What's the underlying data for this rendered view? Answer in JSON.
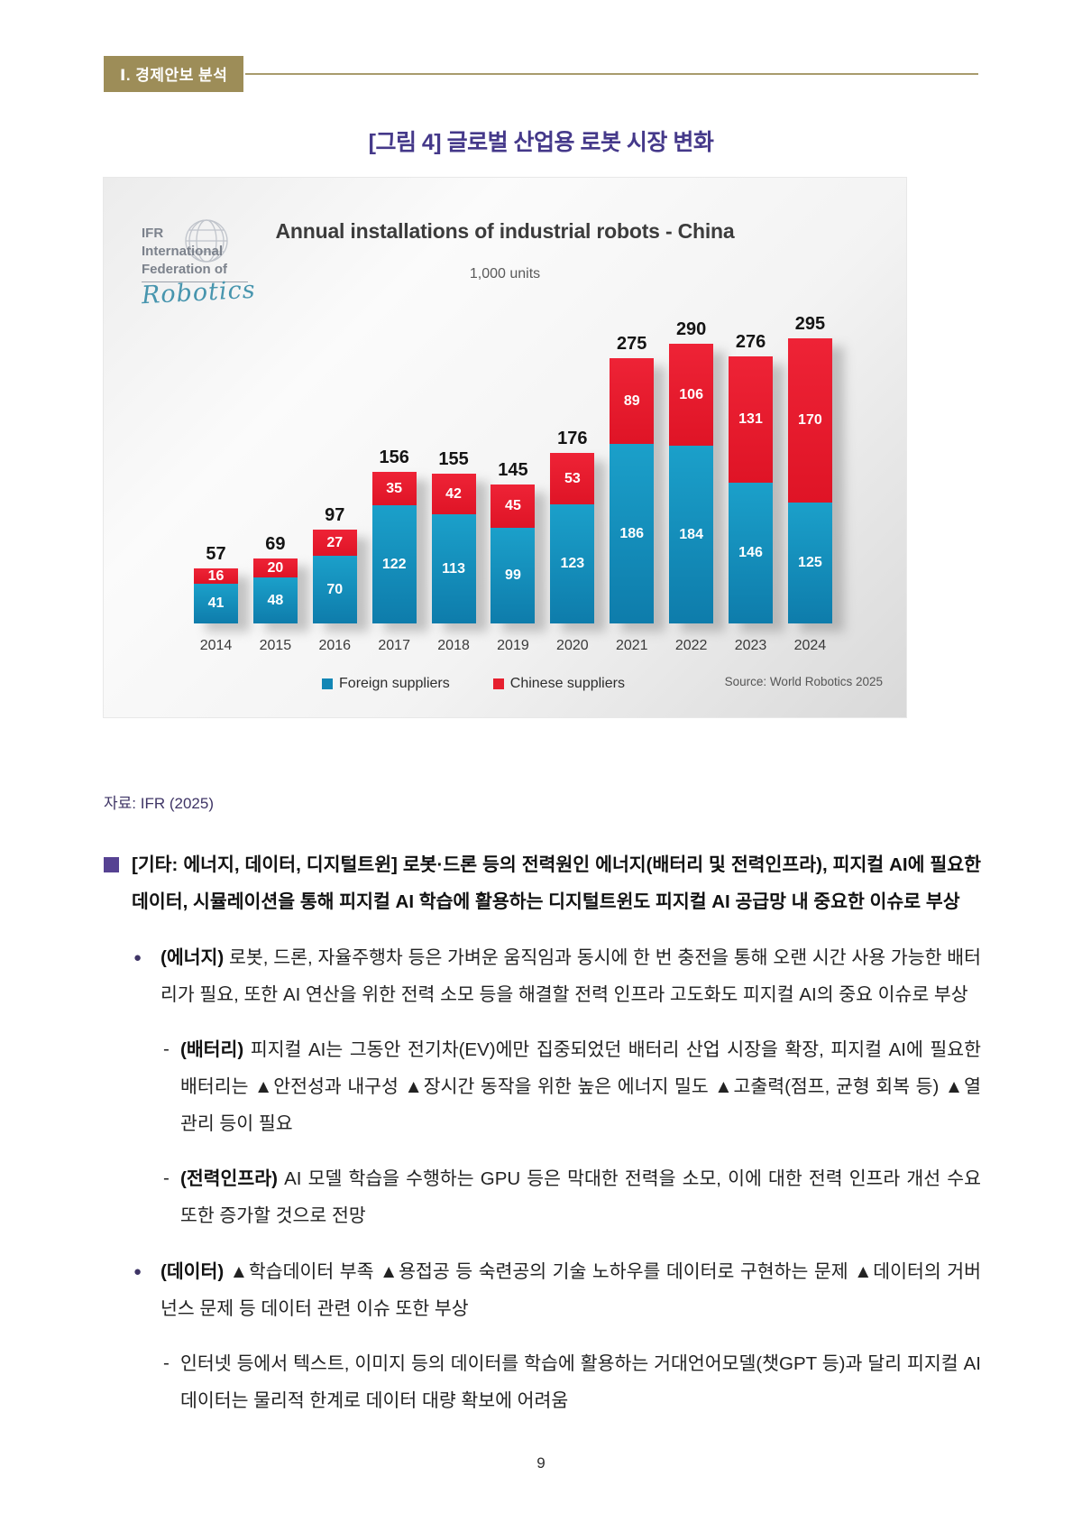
{
  "page": {
    "header": {
      "badge": "Ⅰ. 경제안보 분석"
    },
    "figure_title": "[그림 4] 글로벌 산업용 로봇 시장 변화",
    "source_caption": "자료: IFR (2025)",
    "page_number": "9"
  },
  "chart": {
    "logo": {
      "line1": "IFR",
      "line2": "International",
      "line3": "Federation of",
      "script": "Robotics"
    },
    "title": "Annual installations of industrial robots - China",
    "subtitle": "1,000 units",
    "source": "Source: World Robotics 2025"
  },
  "chart_data": {
    "type": "bar",
    "stacked": true,
    "title": "Annual installations of industrial robots - China",
    "subtitle": "1,000 units",
    "categories": [
      "2014",
      "2015",
      "2016",
      "2017",
      "2018",
      "2019",
      "2020",
      "2021",
      "2022",
      "2023",
      "2024"
    ],
    "series": [
      {
        "name": "Foreign suppliers",
        "color": "#1286b5",
        "values": [
          41,
          48,
          70,
          122,
          113,
          99,
          123,
          186,
          184,
          146,
          125
        ]
      },
      {
        "name": "Chinese suppliers",
        "color": "#e61f2e",
        "values": [
          16,
          20,
          27,
          35,
          42,
          45,
          53,
          89,
          106,
          131,
          170
        ]
      }
    ],
    "totals": [
      57,
      69,
      97,
      156,
      155,
      145,
      176,
      275,
      290,
      276,
      295
    ],
    "ylim": [
      0,
      310
    ],
    "grid": false,
    "legend_position": "bottom",
    "source_note": "Source: World Robotics 2025"
  },
  "body": {
    "section": {
      "text": "[기타: 에너지, 데이터, 디지털트윈] 로봇·드론 등의 전력원인 에너지(배터리 및 전력인프라), 피지컬 AI에 필요한 데이터, 시뮬레이션을 통해 피지컬 AI 학습에 활용하는 디지털트윈도 피지컬 AI 공급망 내 중요한 이슈로 부상"
    },
    "bullets": [
      {
        "level": 1,
        "label": "(에너지)",
        "text": "로봇, 드론, 자율주행차 등은 가벼운 움직임과 동시에 한 번 충전을 통해 오랜 시간 사용 가능한 배터리가 필요, 또한 AI 연산을 위한 전력 소모 등을 해결할 전력 인프라 고도화도 피지컬 AI의 중요 이슈로 부상"
      },
      {
        "level": 2,
        "label": "(배터리)",
        "text": "피지컬 AI는 그동안 전기차(EV)에만 집중되었던 배터리 산업 시장을 확장, 피지컬 AI에 필요한 배터리는 ▲안전성과 내구성 ▲장시간 동작을 위한 높은 에너지 밀도 ▲고출력(점프, 균형 회복 등) ▲열관리 등이 필요"
      },
      {
        "level": 2,
        "label": "(전력인프라)",
        "text": "AI 모델 학습을 수행하는 GPU 등은 막대한 전력을 소모, 이에 대한 전력 인프라 개선 수요 또한 증가할 것으로 전망"
      },
      {
        "level": 1,
        "label": "(데이터)",
        "text": "▲학습데이터 부족 ▲용접공 등 숙련공의 기술 노하우를 데이터로 구현하는 문제 ▲데이터의 거버넌스 문제 등 데이터 관련 이슈 또한 부상"
      },
      {
        "level": 2,
        "label": "",
        "text": "인터넷 등에서 텍스트, 이미지 등의 데이터를 학습에 활용하는 거대언어모델(챗GPT 등)과 달리 피지컬 AI 데이터는 물리적 한계로 데이터 대량 확보에 어려움"
      }
    ]
  },
  "colors": {
    "header_gold": "#9d8d58",
    "title_purple": "#45398a",
    "bullet_purple": "#564292",
    "caption_navy": "#3f3566",
    "bar_blue": "#1286b5",
    "bar_red": "#e61f2e"
  }
}
